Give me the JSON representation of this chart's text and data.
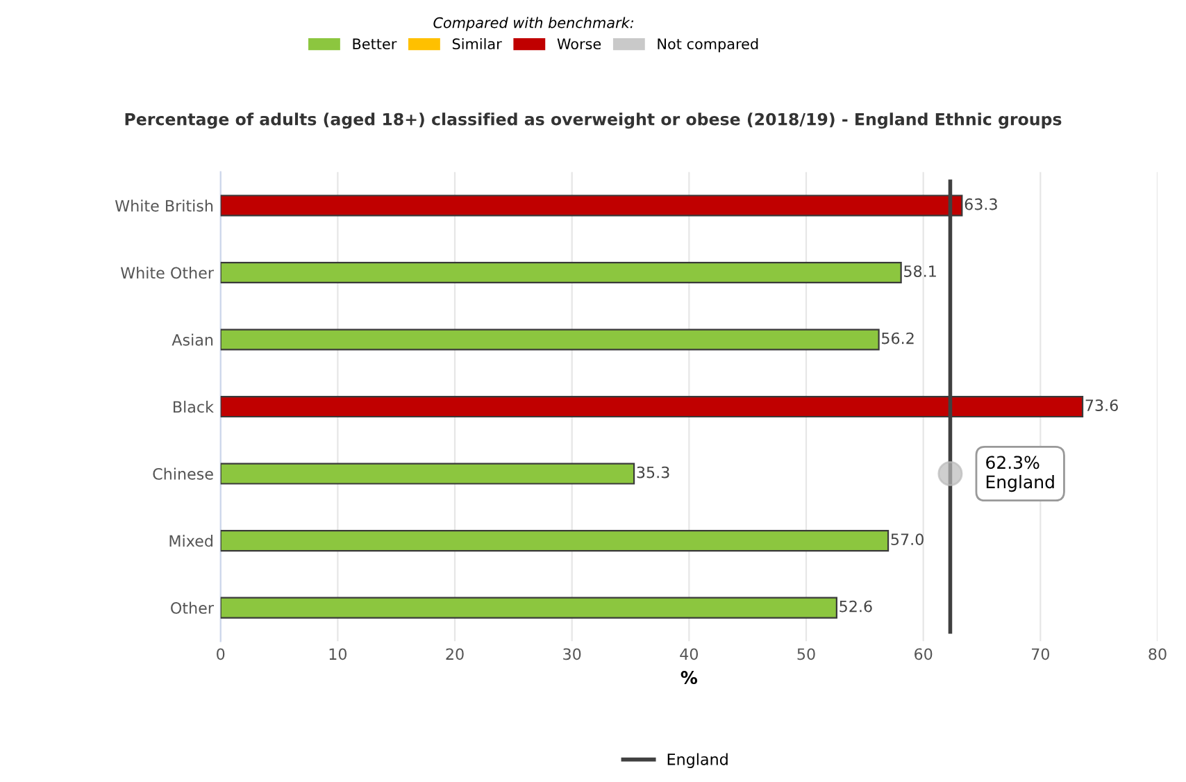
{
  "chart_data": {
    "type": "bar",
    "orientation": "horizontal",
    "title": "Percentage of adults (aged 18+) classified as overweight or obese (2018/19) - England Ethnic groups",
    "xlabel": "%",
    "legend_title": "Compared with benchmark:",
    "legend": "top",
    "categories": [
      "White British",
      "White Other",
      "Asian",
      "Black",
      "Chinese",
      "Mixed",
      "Other"
    ],
    "series": [
      {
        "name": "Better",
        "color": "#8cc63f",
        "values": [
          null,
          58.1,
          56.2,
          null,
          35.3,
          57.0,
          52.6
        ]
      },
      {
        "name": "Similar",
        "color": "#ffc000",
        "values": [
          null,
          null,
          null,
          null,
          null,
          null,
          null
        ]
      },
      {
        "name": "Worse",
        "color": "#c00000",
        "values": [
          63.3,
          null,
          null,
          73.6,
          null,
          null,
          null
        ]
      },
      {
        "name": "Not compared",
        "color": "#c9c9c9",
        "values": [
          null,
          null,
          null,
          null,
          null,
          null,
          null
        ]
      }
    ],
    "value_labels": [
      "63.3",
      "58.1",
      "56.2",
      "73.6",
      "35.3",
      "57.0",
      "52.6"
    ],
    "xlim": [
      0,
      80
    ],
    "xticks": [
      0,
      10,
      20,
      30,
      40,
      50,
      60,
      70,
      80
    ],
    "grid": "x",
    "ref_lines": [
      {
        "axis": "x",
        "value": 62.3,
        "label": "England",
        "color": "#404040"
      }
    ],
    "annotations": [
      {
        "text": "62.3%\nEngland",
        "x": 62.3,
        "y": "Chinese"
      }
    ]
  }
}
